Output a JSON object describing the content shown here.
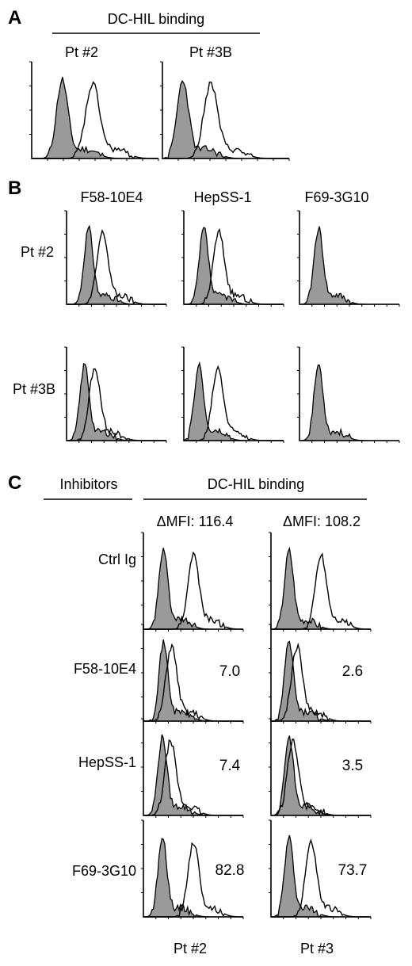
{
  "panel_a": {
    "letter": "A",
    "header": "DC-HIL binding",
    "columns": [
      "Pt #2",
      "Pt #3B"
    ]
  },
  "panel_b": {
    "letter": "B",
    "columns": [
      "F58-10E4",
      "HepSS-1",
      "F69-3G10"
    ],
    "rows": [
      "Pt #2",
      "Pt #3B"
    ]
  },
  "panel_c": {
    "letter": "C",
    "left_header": "Inhibitors",
    "right_header": "DC-HIL binding",
    "dmfi_labels": [
      "ΔMFI: 116.4",
      "ΔMFI: 108.2"
    ],
    "rows": [
      "Ctrl Ig",
      "F58-10E4",
      "HepSS-1",
      "F69-3G10"
    ],
    "values": [
      [
        "7.0",
        "2.6"
      ],
      [
        "7.4",
        "3.5"
      ],
      [
        "82.8",
        "73.7"
      ]
    ],
    "columns": [
      "Pt #2",
      "Pt #3"
    ]
  }
}
